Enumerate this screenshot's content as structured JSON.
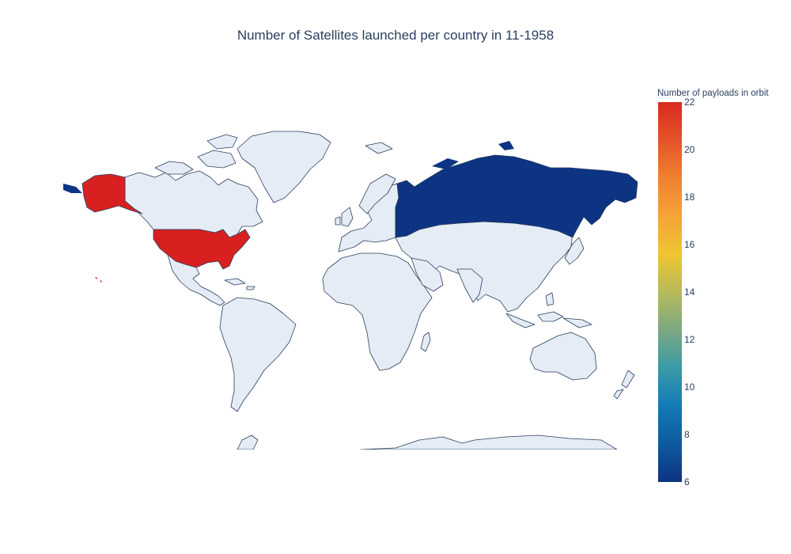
{
  "chart_data": {
    "type": "choropleth",
    "title": "Number of Satellites launched per country in 11-1958",
    "projection": "natural earth",
    "colorbar": {
      "title": "Number of payloads in orbit",
      "range": [
        6,
        22
      ],
      "ticks": [
        "6",
        "8",
        "10",
        "12",
        "14",
        "16",
        "18",
        "20",
        "22"
      ],
      "colorscale": [
        "#0d3481",
        "#0f5a9f",
        "#127bb6",
        "#3a9aa6",
        "#7ca882",
        "#b7bb5a",
        "#efc530",
        "#f4a338",
        "#f0812f",
        "#e4532a",
        "#d92a20"
      ]
    },
    "regions": [
      {
        "country": "United States",
        "value": 22,
        "color": "#d92020"
      },
      {
        "country": "Russia",
        "value": 6,
        "color": "#0d3483"
      }
    ],
    "other_land_color": "#e5ecf6",
    "border_color": "#2a3f5f",
    "background": "#ffffff"
  }
}
